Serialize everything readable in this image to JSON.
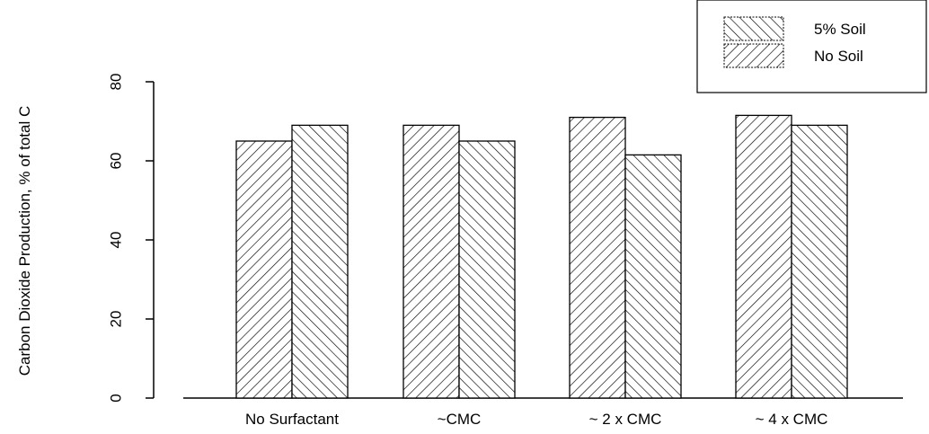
{
  "chart_data": {
    "type": "bar",
    "title": "",
    "xlabel": "",
    "ylabel": "Carbon Dioxide Production, % of total C",
    "ylim": [
      0,
      80
    ],
    "yticks": [
      0,
      20,
      40,
      60,
      80
    ],
    "categories": [
      "No Surfactant",
      "~CMC",
      "~ 2 x CMC",
      "~ 4 x CMC"
    ],
    "series": [
      {
        "name": "No Soil",
        "pattern": "forward-hatch",
        "values": [
          65,
          69,
          71,
          71.5
        ]
      },
      {
        "name": "5% Soil",
        "pattern": "back-hatch",
        "values": [
          69,
          65,
          61.5,
          69
        ]
      }
    ],
    "legend": {
      "position": "top-right",
      "entries": [
        {
          "label": "5% Soil",
          "pattern": "back-hatch"
        },
        {
          "label": "No Soil",
          "pattern": "forward-hatch"
        }
      ]
    },
    "grid": false
  }
}
